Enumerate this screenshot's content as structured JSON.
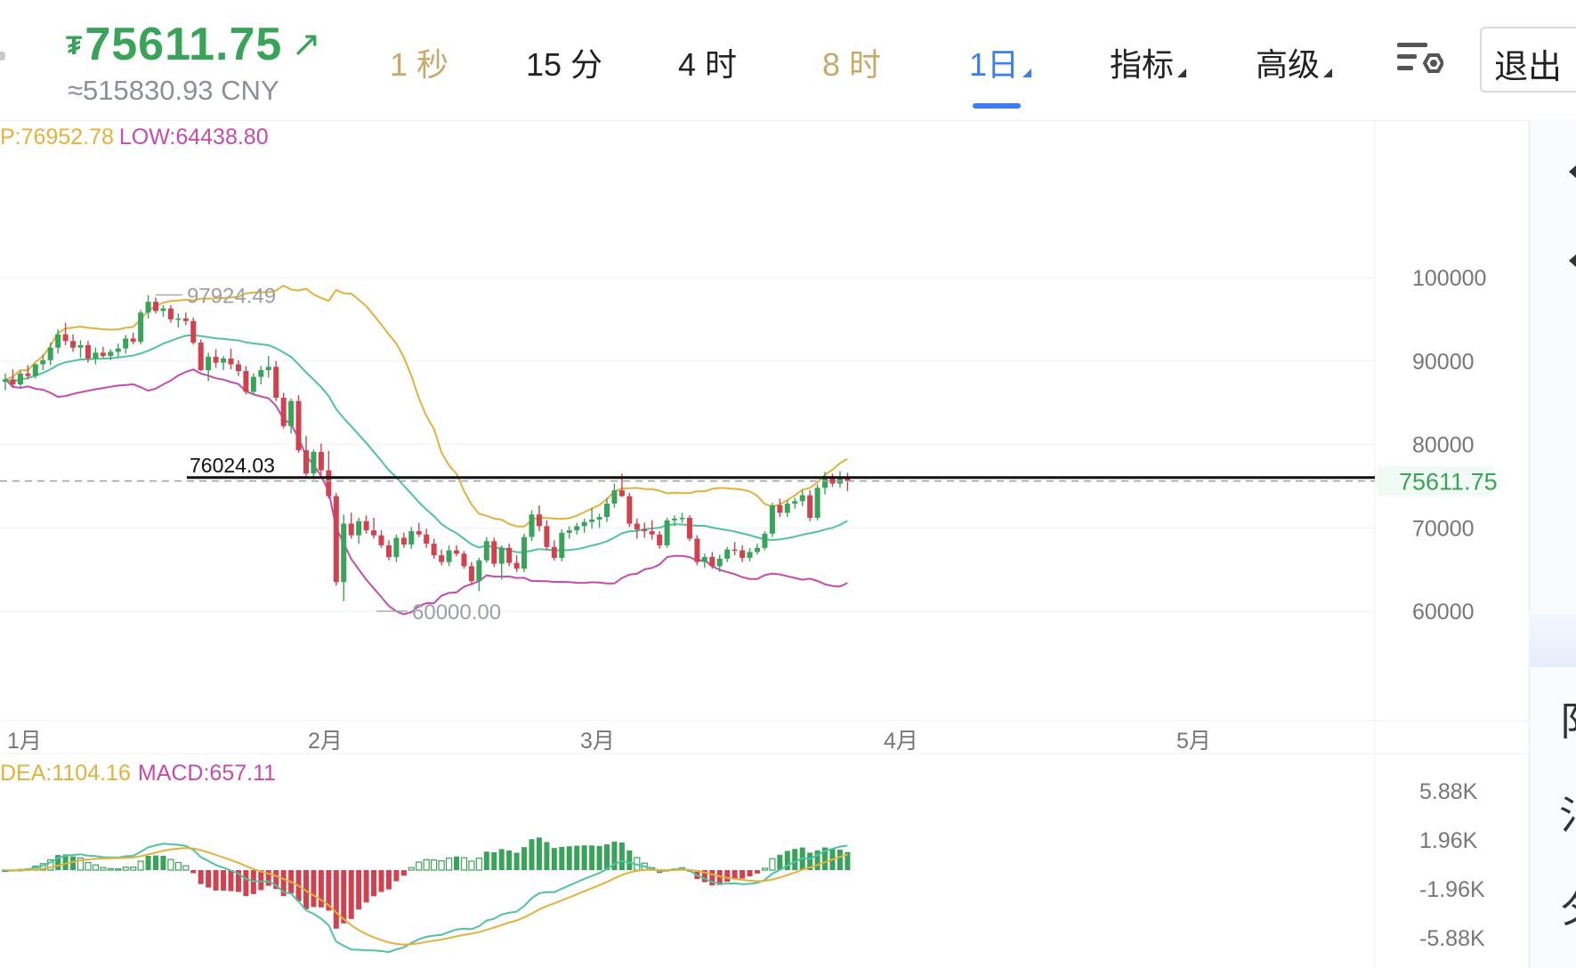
{
  "header": {
    "price": "75611.75",
    "price_cny": "≈515830.93 CNY",
    "coin_symbol": "₮",
    "arrow_symbol": "↗",
    "colors": {
      "up": "#3aa35a",
      "gold_tab": "#c9a96a",
      "active_tab": "#3b7ff2"
    }
  },
  "tabs": [
    {
      "label": "1 秒",
      "style": "gold"
    },
    {
      "label": "15 分",
      "style": "normal"
    },
    {
      "label": "4 时",
      "style": "normal"
    },
    {
      "label": "8 时",
      "style": "gold"
    },
    {
      "label": "1日",
      "style": "active",
      "caret": true
    },
    {
      "label": "指标",
      "style": "normal",
      "caret": true
    },
    {
      "label": "高级",
      "style": "normal",
      "caret": true
    }
  ],
  "settings_icon": "chart-settings-icon",
  "exit_label": "退出",
  "right_panel": {
    "chars": [
      "阝",
      "氵",
      "夕"
    ]
  },
  "main_chart": {
    "indicator_legend": {
      "up_label": "P:76952.78",
      "low_label": "LOW:64438.80",
      "up_color": "#e2b23d",
      "low_color": "#c44bb0"
    },
    "y_ticks": [
      "100000",
      "90000",
      "80000",
      "70000",
      "60000"
    ],
    "y_tick_values": [
      100000,
      90000,
      80000,
      70000,
      60000
    ],
    "current_price_label": "75611.75",
    "current_price": 75611.75,
    "hline_label": "76024.03",
    "hline_value": 76024.03,
    "high_label": "97924.49",
    "high_value": 97924.49,
    "low_marker_label": "60000.00",
    "low_marker_value": 60000.0,
    "x_labels": [
      "1月",
      "2月",
      "3月",
      "4月",
      "5月"
    ]
  },
  "macd_chart": {
    "legend": {
      "dea_label": "DEA:1104.16",
      "macd_label": "MACD:657.11",
      "dea_color": "#e2b23d",
      "macd_color": "#c44bb0"
    },
    "y_ticks": [
      "5.88K",
      "1.96K",
      "-1.96K",
      "-5.88K"
    ]
  },
  "chart_data": {
    "type": "line",
    "candles_ohlc": [
      [
        87500,
        88500,
        86500,
        87800
      ],
      [
        87800,
        89000,
        86800,
        87200
      ],
      [
        87200,
        88800,
        86900,
        88500
      ],
      [
        88500,
        89500,
        87800,
        88200
      ],
      [
        88200,
        89700,
        87900,
        89600
      ],
      [
        89600,
        90800,
        88900,
        90100
      ],
      [
        90100,
        92200,
        89500,
        91600
      ],
      [
        91600,
        93800,
        90900,
        93200
      ],
      [
        93200,
        94600,
        91900,
        92400
      ],
      [
        92400,
        93200,
        91100,
        91600
      ],
      [
        91600,
        92500,
        90400,
        91900
      ],
      [
        91900,
        92400,
        89800,
        90300
      ],
      [
        90300,
        91600,
        89600,
        91000
      ],
      [
        91000,
        91700,
        90400,
        90600
      ],
      [
        90600,
        91400,
        90100,
        91100
      ],
      [
        91100,
        92100,
        90500,
        91500
      ],
      [
        91500,
        93100,
        90900,
        92700
      ],
      [
        92700,
        93400,
        92000,
        92300
      ],
      [
        92300,
        96100,
        92000,
        95800
      ],
      [
        95800,
        97900,
        95100,
        97100
      ],
      [
        97100,
        97600,
        95700,
        96000
      ],
      [
        96000,
        96700,
        95300,
        96300
      ],
      [
        96300,
        96700,
        94600,
        95000
      ],
      [
        95000,
        95700,
        94000,
        95100
      ],
      [
        95100,
        95800,
        94300,
        94800
      ],
      [
        94800,
        95200,
        92000,
        92200
      ],
      [
        92200,
        92600,
        88800,
        88900
      ],
      [
        88900,
        91000,
        87600,
        90500
      ],
      [
        90500,
        91400,
        89200,
        89800
      ],
      [
        89800,
        90600,
        88900,
        90300
      ],
      [
        90300,
        91500,
        89000,
        89600
      ],
      [
        89600,
        90100,
        88200,
        88800
      ],
      [
        88800,
        89400,
        86000,
        86300
      ],
      [
        86300,
        88500,
        85900,
        88100
      ],
      [
        88100,
        89400,
        87200,
        88900
      ],
      [
        88900,
        90600,
        88000,
        89300
      ],
      [
        89300,
        90000,
        85200,
        85600
      ],
      [
        85600,
        86200,
        81900,
        82200
      ],
      [
        82200,
        85500,
        81300,
        85200
      ],
      [
        85200,
        85900,
        79000,
        79300
      ],
      [
        79300,
        81000,
        76200,
        76500
      ],
      [
        76500,
        79400,
        75800,
        79100
      ],
      [
        79100,
        80100,
        76400,
        76900
      ],
      [
        76900,
        79200,
        73500,
        73800
      ],
      [
        73800,
        74200,
        63100,
        63500
      ],
      [
        63500,
        71600,
        61200,
        70500
      ],
      [
        70500,
        71800,
        68700,
        69100
      ],
      [
        69100,
        71200,
        68100,
        70800
      ],
      [
        70800,
        71500,
        69300,
        69700
      ],
      [
        69700,
        71200,
        68700,
        69100
      ],
      [
        69100,
        69700,
        67600,
        67900
      ],
      [
        67900,
        68500,
        66100,
        66500
      ],
      [
        66500,
        69200,
        65900,
        68800
      ],
      [
        68800,
        69400,
        67600,
        68000
      ],
      [
        68000,
        70100,
        67500,
        69600
      ],
      [
        69600,
        70600,
        68900,
        69200
      ],
      [
        69200,
        69900,
        67600,
        68100
      ],
      [
        68100,
        68700,
        66300,
        66700
      ],
      [
        66700,
        67400,
        65500,
        65900
      ],
      [
        65900,
        67900,
        65400,
        67300
      ],
      [
        67300,
        67900,
        66600,
        66900
      ],
      [
        66900,
        67200,
        65100,
        65400
      ],
      [
        65400,
        65900,
        63200,
        63600
      ],
      [
        63600,
        66400,
        62400,
        66100
      ],
      [
        66100,
        68900,
        65800,
        68400
      ],
      [
        68400,
        68800,
        65300,
        65700
      ],
      [
        65700,
        67900,
        63800,
        67600
      ],
      [
        67600,
        68100,
        65400,
        65800
      ],
      [
        65800,
        66700,
        64700,
        65100
      ],
      [
        65100,
        69300,
        64700,
        68900
      ],
      [
        68900,
        72100,
        68400,
        71600
      ],
      [
        71600,
        72700,
        69600,
        70200
      ],
      [
        70200,
        70900,
        67300,
        67700
      ],
      [
        67700,
        68500,
        66100,
        66400
      ],
      [
        66400,
        69800,
        66000,
        69400
      ],
      [
        69400,
        70200,
        68700,
        69700
      ],
      [
        69700,
        70600,
        69200,
        70200
      ],
      [
        70200,
        71100,
        69400,
        70700
      ],
      [
        70700,
        72400,
        69900,
        71000
      ],
      [
        71000,
        71700,
        70000,
        71300
      ],
      [
        71300,
        73600,
        70700,
        72900
      ],
      [
        72900,
        75300,
        72400,
        74500
      ],
      [
        74500,
        76500,
        73700,
        73800
      ],
      [
        73800,
        74200,
        70100,
        70500
      ],
      [
        70500,
        71100,
        68700,
        69800
      ],
      [
        69800,
        70600,
        68800,
        69600
      ],
      [
        69600,
        70900,
        68600,
        69200
      ],
      [
        69200,
        69600,
        67500,
        67900
      ],
      [
        67900,
        71200,
        67600,
        70900
      ],
      [
        70900,
        71500,
        70200,
        71100
      ],
      [
        71100,
        71800,
        70600,
        71200
      ],
      [
        71200,
        71500,
        68400,
        68700
      ],
      [
        68700,
        69100,
        65500,
        65900
      ],
      [
        65900,
        66900,
        65200,
        66500
      ],
      [
        66500,
        67100,
        65100,
        65400
      ],
      [
        65400,
        66800,
        64700,
        66300
      ],
      [
        66300,
        67700,
        65900,
        67400
      ],
      [
        67400,
        68300,
        66700,
        67300
      ],
      [
        67300,
        67900,
        65900,
        66400
      ],
      [
        66400,
        67600,
        66000,
        67100
      ],
      [
        67100,
        68100,
        66800,
        67600
      ],
      [
        67600,
        69600,
        67300,
        69300
      ],
      [
        69300,
        73000,
        68900,
        72700
      ],
      [
        72700,
        73500,
        71300,
        71800
      ],
      [
        71800,
        73300,
        71300,
        72900
      ],
      [
        72900,
        73600,
        72300,
        73200
      ],
      [
        73200,
        74500,
        72600,
        73900
      ],
      [
        73900,
        74500,
        70800,
        71200
      ],
      [
        71200,
        75200,
        70900,
        74800
      ],
      [
        74800,
        76700,
        74000,
        76200
      ],
      [
        76200,
        76500,
        74900,
        75300
      ],
      [
        75300,
        76800,
        74800,
        75900
      ],
      [
        75900,
        76600,
        74400,
        75611
      ]
    ],
    "upper_band": [
      [
        88000,
        0
      ],
      [
        89000,
        0
      ],
      [
        89500,
        0
      ],
      [
        90000,
        0
      ],
      [
        90600,
        0
      ],
      [
        91200,
        0
      ],
      [
        92200,
        0
      ],
      [
        93500,
        0
      ],
      [
        94400,
        0
      ],
      [
        94900,
        0
      ],
      [
        95000,
        0
      ],
      [
        94900,
        0
      ],
      [
        94800,
        0
      ],
      [
        94800,
        0
      ],
      [
        95000,
        0
      ],
      [
        95200,
        0
      ],
      [
        95600,
        0
      ],
      [
        96300,
        0
      ],
      [
        97300,
        0
      ],
      [
        98500,
        0
      ],
      [
        99200,
        0
      ],
      [
        99600,
        0
      ],
      [
        99800,
        0
      ],
      [
        99900,
        0
      ],
      [
        100100,
        0
      ],
      [
        100400,
        0
      ],
      [
        100700,
        0
      ],
      [
        101000,
        0
      ],
      [
        101500,
        0
      ],
      [
        102500,
        0
      ],
      [
        103400,
        0
      ],
      [
        103500,
        0
      ],
      [
        103300,
        0
      ],
      [
        103000,
        0
      ],
      [
        102600,
        0
      ],
      [
        102400,
        0
      ],
      [
        102600,
        0
      ],
      [
        103200,
        0
      ],
      [
        104000,
        0
      ],
      [
        104800,
        0
      ]
    ],
    "series_note_placeholder": ""
  }
}
